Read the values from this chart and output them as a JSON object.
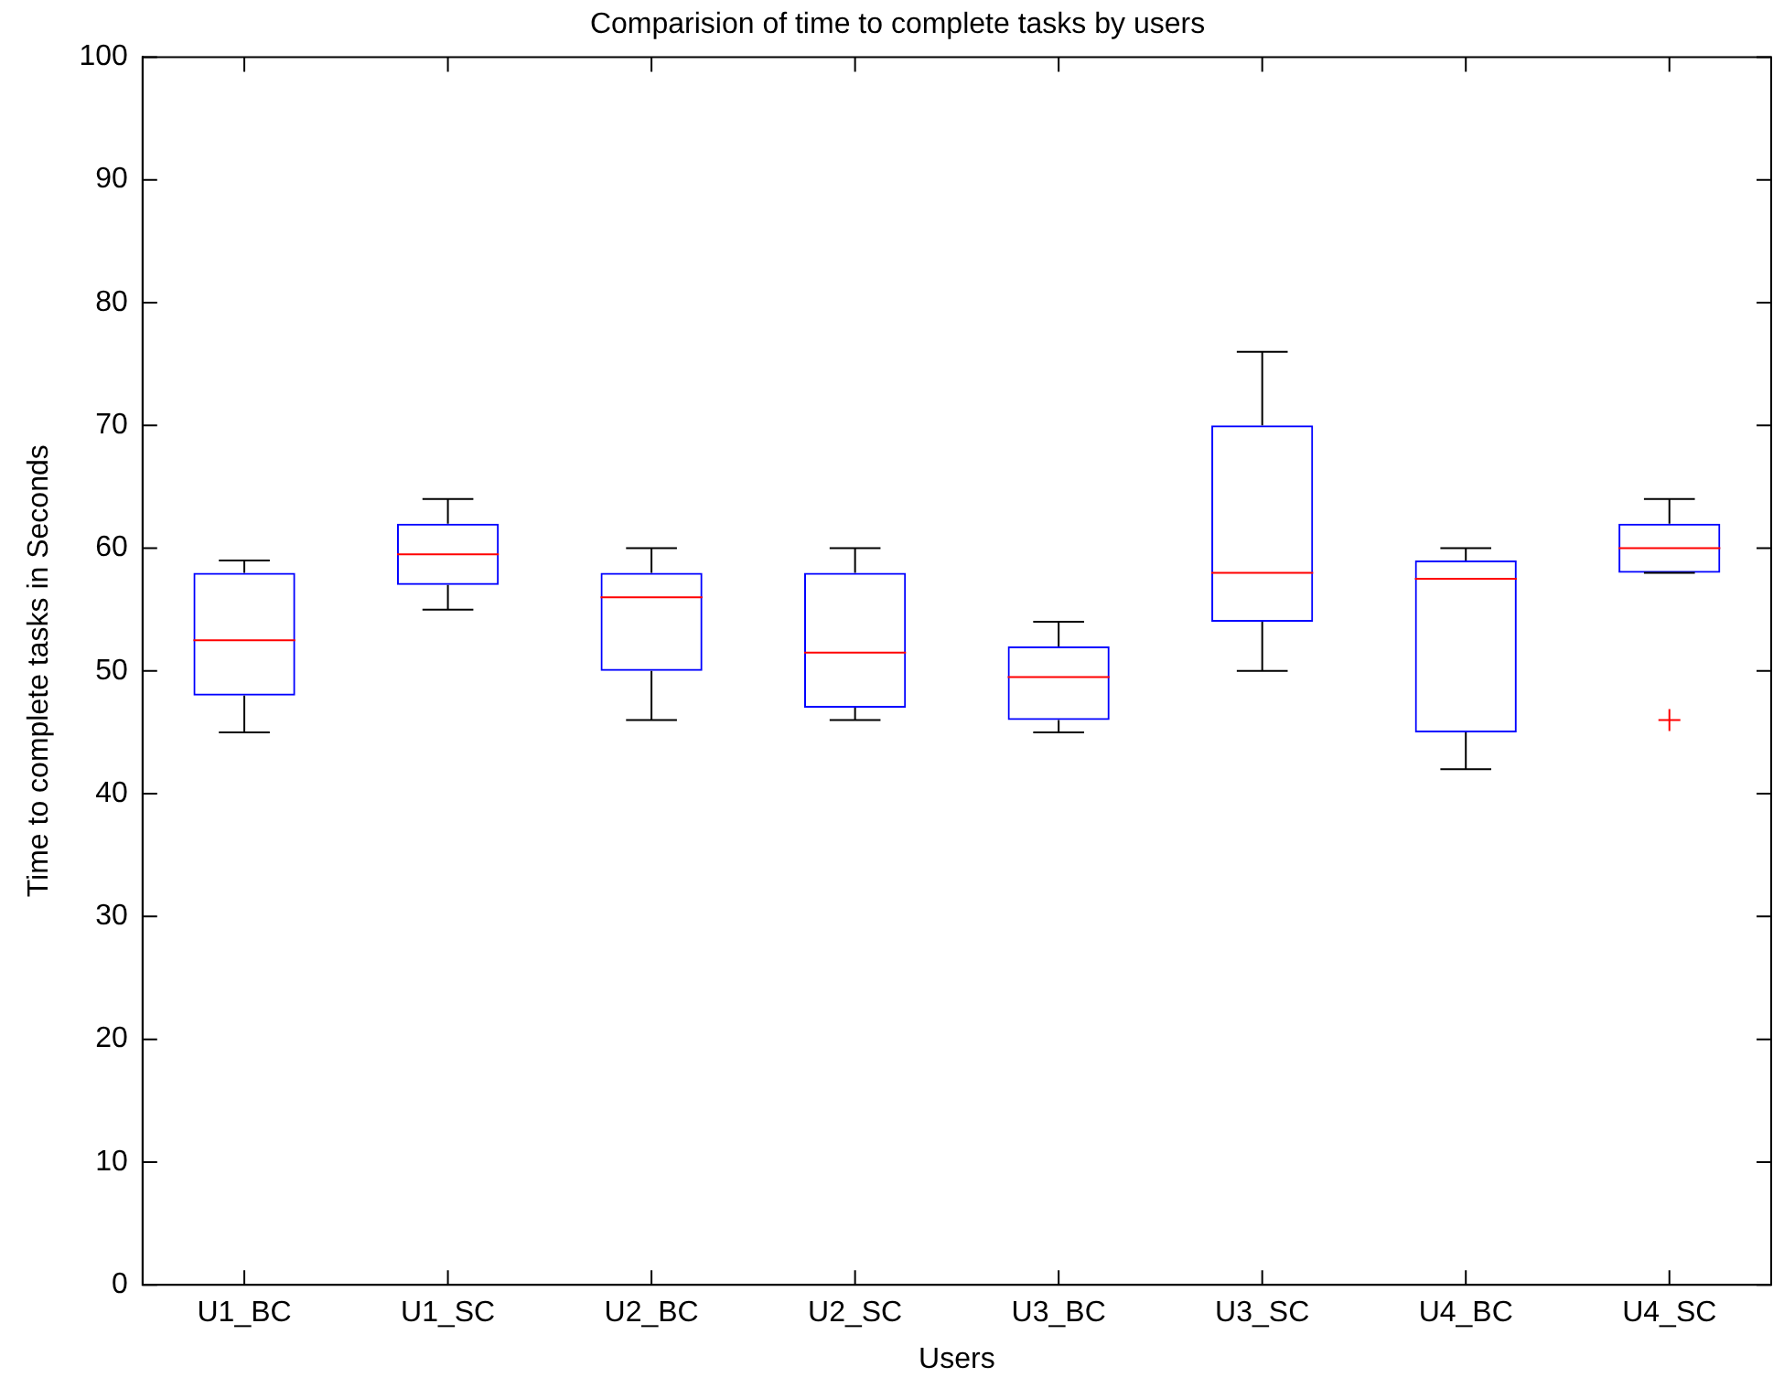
{
  "chart_data": {
    "type": "box",
    "title": "Comparision of time to complete tasks by users",
    "xlabel": "Users",
    "ylabel": "Time to complete tasks in Seconds",
    "categories": [
      "U1_BC",
      "U1_SC",
      "U2_BC",
      "U2_SC",
      "U3_BC",
      "U3_SC",
      "U4_BC",
      "U4_SC"
    ],
    "boxes": [
      {
        "low": 45,
        "q1": 48,
        "median": 52.5,
        "q3": 58,
        "high": 59
      },
      {
        "low": 55,
        "q1": 57,
        "median": 59.5,
        "q3": 62,
        "high": 64
      },
      {
        "low": 46,
        "q1": 50,
        "median": 56,
        "q3": 58,
        "high": 60
      },
      {
        "low": 46,
        "q1": 47,
        "median": 51.5,
        "q3": 58,
        "high": 60
      },
      {
        "low": 45,
        "q1": 46,
        "median": 49.5,
        "q3": 52,
        "high": 54
      },
      {
        "low": 50,
        "q1": 54,
        "median": 58,
        "q3": 70,
        "high": 76
      },
      {
        "low": 42,
        "q1": 45,
        "median": 57.5,
        "q3": 59,
        "high": 60
      },
      {
        "low": 58,
        "q1": 58,
        "median": 60,
        "q3": 62,
        "high": 64,
        "outliers": [
          46
        ]
      }
    ],
    "color": "#0000ff",
    "ylim": [
      0,
      100
    ],
    "yticks": [
      0,
      10,
      20,
      30,
      40,
      50,
      60,
      70,
      80,
      90,
      100
    ],
    "grid": false,
    "legend": false
  }
}
